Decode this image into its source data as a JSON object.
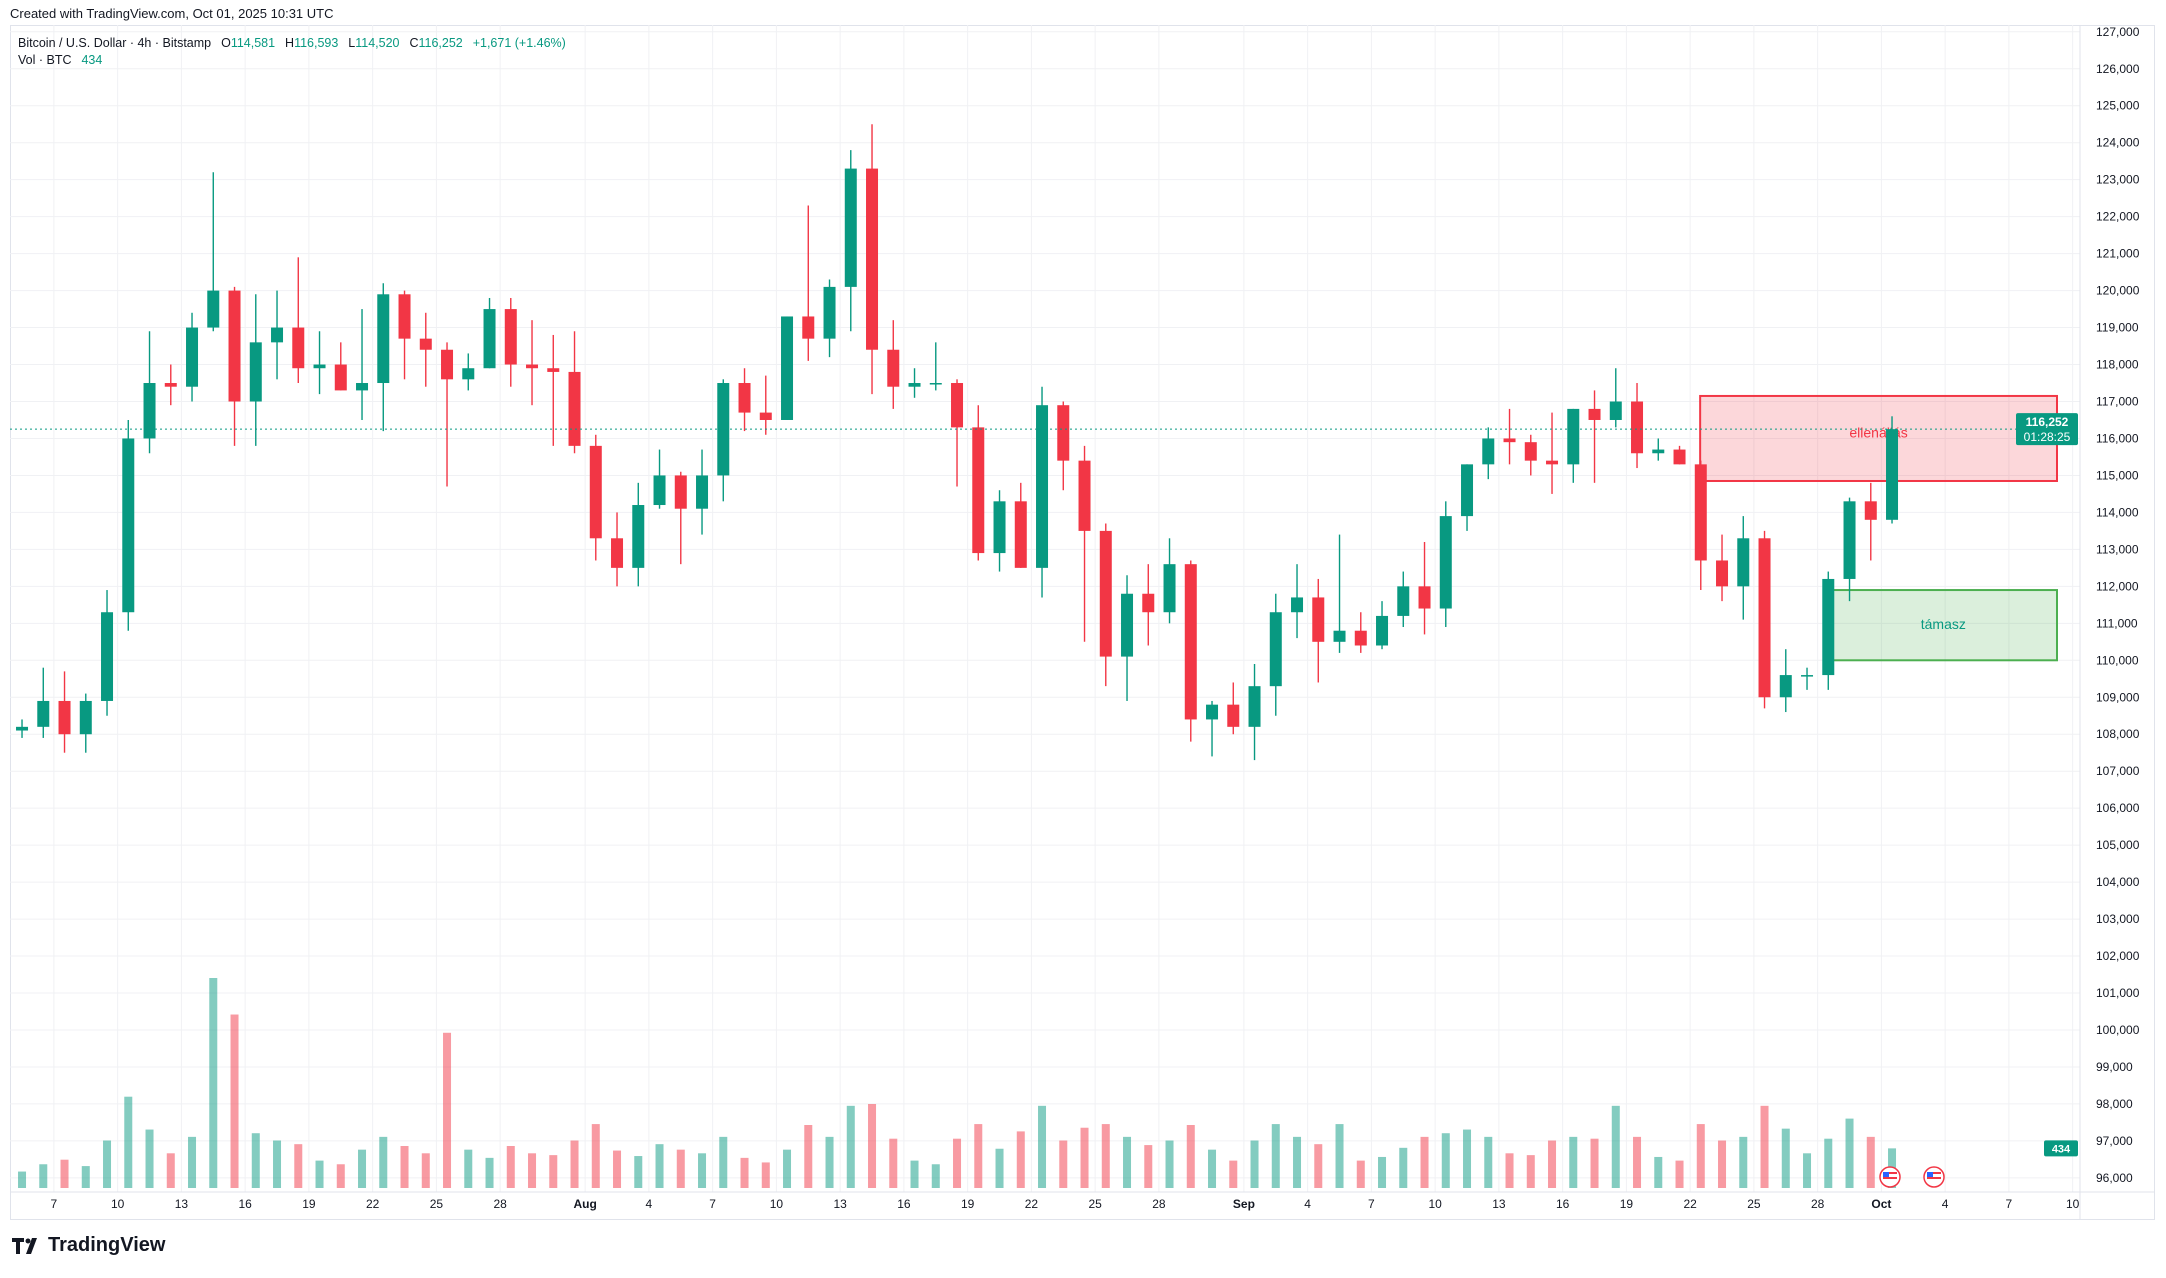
{
  "header": {
    "created": "Created with TradingView.com, Oct 01, 2025 10:31 UTC"
  },
  "legend": {
    "symbol": "Bitcoin / U.S. Dollar · 4h · Bitstamp",
    "open_label": "O",
    "open": "114,581",
    "high_label": "H",
    "high": "116,593",
    "low_label": "L",
    "low": "114,520",
    "close_label": "C",
    "close": "116,252",
    "change": "+1,671 (+1.46%)",
    "vol_label": "Vol · BTC",
    "vol": "434"
  },
  "price_tag": {
    "price": "116,252",
    "countdown": "01:28:25"
  },
  "vol_tag": "434",
  "zones": [
    {
      "label": "ellenállás",
      "from": 114850,
      "to": 117150,
      "start_day": "Sep 22",
      "color": "#f23645"
    },
    {
      "label": "támasz",
      "from": 110000,
      "to": 111900,
      "start_day": "Sep 29",
      "color": "#4caf50"
    }
  ],
  "footer": {
    "brand": "TradingView"
  },
  "colors": {
    "up": "#089981",
    "down": "#f23645"
  },
  "chart_data": {
    "type": "candlestick",
    "title": "Bitcoin / U.S. Dollar · 4h · Bitstamp",
    "ylim": [
      96000,
      127000
    ],
    "y_ticks": [
      "127,000",
      "126,000",
      "125,000",
      "124,000",
      "123,000",
      "122,000",
      "121,000",
      "120,000",
      "119,000",
      "118,000",
      "117,000",
      "116,000",
      "115,000",
      "114,000",
      "113,000",
      "112,000",
      "111,000",
      "110,000",
      "109,000",
      "108,000",
      "107,000",
      "106,000",
      "105,000",
      "104,000",
      "103,000",
      "102,000",
      "101,000",
      "100,000",
      "99,000",
      "98,000",
      "97,000",
      "96,000"
    ],
    "x_ticks": [
      "7",
      "10",
      "13",
      "16",
      "19",
      "22",
      "25",
      "28",
      "Aug",
      "4",
      "7",
      "10",
      "13",
      "16",
      "19",
      "22",
      "25",
      "28",
      "Sep",
      "4",
      "7",
      "10",
      "13",
      "16",
      "19",
      "22",
      "25",
      "28",
      "Oct",
      "4",
      "7",
      "10"
    ],
    "x_tick_day_offsets": [
      2,
      5,
      8,
      11,
      14,
      17,
      20,
      23,
      27,
      30,
      33,
      36,
      39,
      42,
      45,
      48,
      51,
      54,
      58,
      61,
      64,
      67,
      70,
      73,
      76,
      79,
      82,
      85,
      88,
      91,
      94,
      97
    ],
    "first_day": "Jul 5",
    "last_price": 116252,
    "ohlc_daily": [
      [
        108100,
        108400,
        107900,
        108200
      ],
      [
        108200,
        109800,
        107900,
        108900
      ],
      [
        108900,
        109700,
        107500,
        108000
      ],
      [
        108000,
        109100,
        107500,
        108900
      ],
      [
        108900,
        111900,
        108500,
        111300
      ],
      [
        111300,
        116500,
        110800,
        116000
      ],
      [
        116000,
        118900,
        115600,
        117500
      ],
      [
        117500,
        118000,
        116900,
        117400
      ],
      [
        117400,
        119400,
        117000,
        119000
      ],
      [
        119000,
        123200,
        118900,
        120000
      ],
      [
        120000,
        120100,
        115800,
        117000
      ],
      [
        117000,
        119900,
        115800,
        118600
      ],
      [
        118600,
        120000,
        117600,
        119000
      ],
      [
        119000,
        120900,
        117500,
        117900
      ],
      [
        117900,
        118900,
        117200,
        118000
      ],
      [
        118000,
        118600,
        117300,
        117300
      ],
      [
        117300,
        119500,
        116500,
        117500
      ],
      [
        117500,
        120200,
        116200,
        119900
      ],
      [
        119900,
        120000,
        117600,
        118700
      ],
      [
        118700,
        119400,
        117400,
        118400
      ],
      [
        118400,
        118600,
        114700,
        117600
      ],
      [
        117600,
        118300,
        117300,
        117900
      ],
      [
        117900,
        119800,
        117900,
        119500
      ],
      [
        119500,
        119800,
        117400,
        118000
      ],
      [
        118000,
        119200,
        116900,
        117900
      ],
      [
        117900,
        118800,
        115800,
        117800
      ],
      [
        117800,
        118900,
        115600,
        115800
      ],
      [
        115800,
        116100,
        112700,
        113300
      ],
      [
        113300,
        114000,
        112000,
        112500
      ],
      [
        112500,
        114800,
        112000,
        114200
      ],
      [
        114200,
        115700,
        114100,
        115000
      ],
      [
        115000,
        115100,
        112600,
        114100
      ],
      [
        114100,
        115700,
        113400,
        115000
      ],
      [
        115000,
        117600,
        114300,
        117500
      ],
      [
        117500,
        117900,
        116200,
        116700
      ],
      [
        116700,
        117700,
        116100,
        116500
      ],
      [
        116500,
        119300,
        116500,
        119300
      ],
      [
        119300,
        122300,
        118100,
        118700
      ],
      [
        118700,
        120300,
        118200,
        120100
      ],
      [
        120100,
        123800,
        118900,
        123300
      ],
      [
        123300,
        124500,
        117200,
        118400
      ],
      [
        118400,
        119200,
        116800,
        117400
      ],
      [
        117400,
        117900,
        117100,
        117500
      ],
      [
        117500,
        118600,
        117300,
        117500
      ],
      [
        117500,
        117600,
        114700,
        116300
      ],
      [
        116300,
        116900,
        112700,
        112900
      ],
      [
        112900,
        114600,
        112400,
        114300
      ],
      [
        114300,
        114800,
        112500,
        112500
      ],
      [
        112500,
        117400,
        111700,
        116900
      ],
      [
        116900,
        117000,
        114600,
        115400
      ],
      [
        115400,
        115800,
        110500,
        113500
      ],
      [
        113500,
        113700,
        109300,
        110100
      ],
      [
        110100,
        112300,
        108900,
        111800
      ],
      [
        111800,
        112600,
        110400,
        111300
      ],
      [
        111300,
        113300,
        111000,
        112600
      ],
      [
        112600,
        112700,
        107800,
        108400
      ],
      [
        108400,
        108900,
        107400,
        108800
      ],
      [
        108800,
        109400,
        108000,
        108200
      ],
      [
        108200,
        109900,
        107300,
        109300
      ],
      [
        109300,
        111800,
        108500,
        111300
      ],
      [
        111300,
        112600,
        110600,
        111700
      ],
      [
        111700,
        112200,
        109400,
        110500
      ],
      [
        110500,
        113400,
        110200,
        110800
      ],
      [
        110800,
        111300,
        110200,
        110400
      ],
      [
        110400,
        111600,
        110300,
        111200
      ],
      [
        111200,
        112400,
        110900,
        112000
      ],
      [
        112000,
        113200,
        110700,
        111400
      ],
      [
        111400,
        114300,
        110900,
        113900
      ],
      [
        113900,
        115300,
        113500,
        115300
      ],
      [
        115300,
        116300,
        114900,
        116000
      ],
      [
        116000,
        116800,
        115300,
        115900
      ],
      [
        115900,
        116100,
        115000,
        115400
      ],
      [
        115400,
        116700,
        114500,
        115300
      ],
      [
        115300,
        116800,
        114800,
        116800
      ],
      [
        116800,
        117300,
        114800,
        116500
      ],
      [
        116500,
        117900,
        116300,
        117000
      ],
      [
        117000,
        117500,
        115200,
        115600
      ],
      [
        115600,
        116000,
        115400,
        115700
      ],
      [
        115700,
        115800,
        115300,
        115300
      ],
      [
        115300,
        115400,
        111900,
        112700
      ],
      [
        112700,
        113400,
        111600,
        112000
      ],
      [
        112000,
        113900,
        111100,
        113300
      ],
      [
        113300,
        113500,
        108700,
        109000
      ],
      [
        109000,
        110300,
        108600,
        109600
      ],
      [
        109600,
        109800,
        109200,
        109600
      ],
      [
        109600,
        112400,
        109200,
        112200
      ],
      [
        112200,
        114400,
        111600,
        114300
      ],
      [
        114300,
        114800,
        112700,
        113800
      ],
      [
        113800,
        116600,
        113700,
        116252
      ]
    ],
    "volume_btc_peak_4h": [
      180,
      260,
      310,
      240,
      520,
      1000,
      640,
      380,
      560,
      2300,
      1900,
      600,
      520,
      480,
      300,
      260,
      420,
      560,
      460,
      380,
      1700,
      420,
      330,
      460,
      380,
      360,
      520,
      700,
      410,
      350,
      480,
      420,
      380,
      560,
      330,
      280,
      420,
      690,
      560,
      900,
      920,
      540,
      300,
      260,
      540,
      700,
      430,
      620,
      900,
      520,
      660,
      700,
      560,
      470,
      520,
      690,
      420,
      300,
      520,
      700,
      560,
      480,
      700,
      300,
      340,
      440,
      560,
      600,
      640,
      560,
      380,
      360,
      520,
      560,
      540,
      900,
      560,
      340,
      300,
      700,
      520,
      560,
      900,
      650,
      380,
      540,
      760,
      560,
      434
    ]
  }
}
